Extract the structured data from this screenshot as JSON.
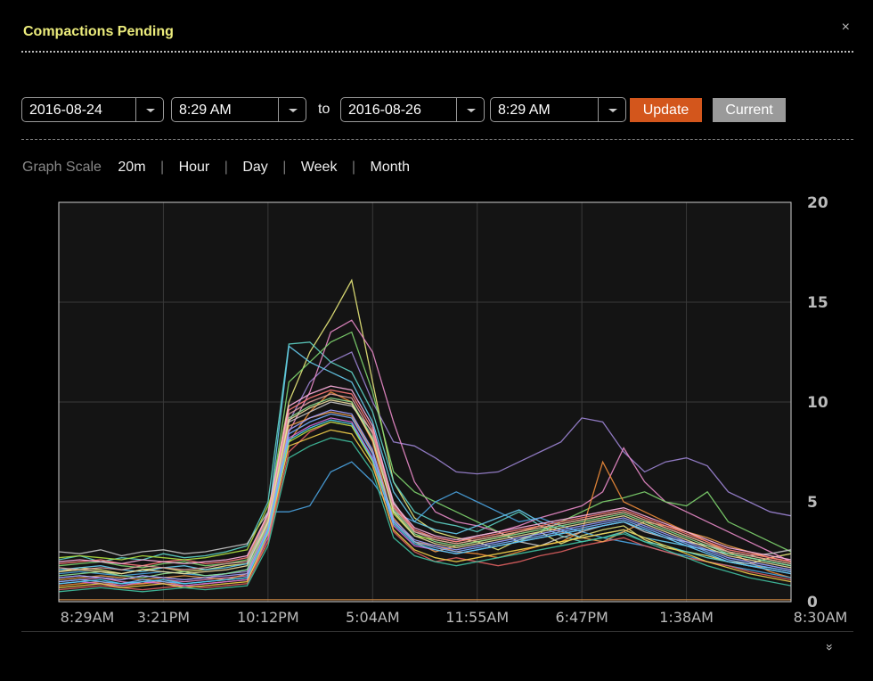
{
  "header": {
    "title": "Compactions Pending",
    "close_label": "×"
  },
  "controls": {
    "start_date": "2016-08-24",
    "start_time": "8:29 AM",
    "to_label": "to",
    "end_date": "2016-08-26",
    "end_time": "8:29 AM",
    "update_label": "Update",
    "current_label": "Current"
  },
  "scale": {
    "label": "Graph Scale",
    "options": [
      "20m",
      "Hour",
      "Day",
      "Week",
      "Month"
    ]
  },
  "expand_icon": "»",
  "colors": {
    "update": "#d3561c",
    "current": "#9a9a9a",
    "title": "#ecec7c"
  },
  "chart_data": {
    "type": "line",
    "title": "",
    "xlabel": "",
    "ylabel": "",
    "ylim": [
      0,
      20
    ],
    "yticks": [
      "0",
      "5",
      "10",
      "15",
      "20"
    ],
    "xticks": [
      "8:29AM",
      "3:21PM",
      "10:12PM",
      "5:04AM",
      "11:55AM",
      "6:47PM",
      "1:38AM",
      "8:30AM"
    ],
    "grid": true,
    "x": [
      "8:29AM",
      "",
      "",
      "",
      "",
      "3:21PM",
      "",
      "",
      "",
      "",
      "10:12PM",
      "",
      "",
      "",
      "",
      "5:04AM",
      "",
      "",
      "",
      "",
      "11:55AM",
      "",
      "",
      "",
      "",
      "6:47PM",
      "",
      "",
      "",
      "",
      "1:38AM",
      "",
      "",
      "",
      "",
      "8:30AM"
    ],
    "series": [
      {
        "color": "#e8e87a",
        "values": [
          1.5,
          1.7,
          1.6,
          1.4,
          1.6,
          1.7,
          1.5,
          1.6,
          1.8,
          1.9,
          4.5,
          10.0,
          12.5,
          14.2,
          16.1,
          11.0,
          6.0,
          4.2,
          3.5,
          3.2,
          3.0,
          2.6,
          3.1,
          3.5,
          2.9,
          3.3,
          3.6,
          3.8,
          3.1,
          2.7,
          2.5,
          2.3,
          2.0,
          1.9,
          2.2,
          2.4
        ]
      },
      {
        "color": "#9c84d4",
        "values": [
          1.2,
          1.3,
          1.2,
          1.1,
          1.3,
          1.2,
          1.1,
          1.2,
          1.4,
          1.5,
          4.0,
          9.0,
          11.0,
          12.0,
          12.5,
          10.0,
          8.0,
          7.8,
          7.2,
          6.5,
          6.4,
          6.5,
          7.0,
          7.5,
          8.0,
          9.2,
          9.0,
          7.5,
          6.5,
          7.0,
          7.2,
          6.8,
          5.5,
          5.0,
          4.5,
          4.3
        ]
      },
      {
        "color": "#5ed4c8",
        "values": [
          2.1,
          2.3,
          2.0,
          2.2,
          2.1,
          2.4,
          2.2,
          2.3,
          2.5,
          2.8,
          5.0,
          12.9,
          13.0,
          12.0,
          11.5,
          9.5,
          6.0,
          4.5,
          4.0,
          3.8,
          3.5,
          4.0,
          4.5,
          3.8,
          3.3,
          3.0,
          3.2,
          3.5,
          3.0,
          2.8,
          2.5,
          2.2,
          2.0,
          1.8,
          1.7,
          1.5
        ]
      },
      {
        "color": "#e88ac8",
        "values": [
          1.0,
          1.1,
          1.2,
          1.0,
          0.9,
          1.1,
          1.0,
          1.1,
          1.2,
          1.3,
          3.5,
          8.5,
          10.5,
          13.5,
          14.1,
          12.5,
          9.0,
          6.0,
          4.5,
          4.0,
          3.8,
          3.5,
          3.8,
          4.2,
          4.5,
          4.8,
          5.5,
          7.7,
          6.0,
          5.0,
          4.5,
          4.0,
          3.5,
          3.0,
          2.5,
          2.0
        ]
      },
      {
        "color": "#7ed46e",
        "values": [
          1.8,
          1.9,
          2.0,
          1.8,
          1.7,
          1.9,
          2.0,
          1.8,
          1.9,
          2.1,
          4.2,
          11.0,
          12.0,
          13.0,
          13.5,
          10.5,
          6.5,
          5.5,
          5.0,
          4.5,
          4.0,
          3.5,
          3.0,
          3.5,
          4.0,
          4.5,
          5.0,
          5.2,
          5.5,
          5.0,
          4.8,
          5.5,
          4.0,
          3.5,
          3.0,
          2.5
        ]
      },
      {
        "color": "#f08c3a",
        "values": [
          0.8,
          0.9,
          1.0,
          0.8,
          0.9,
          1.0,
          0.8,
          0.9,
          1.0,
          1.1,
          3.0,
          8.0,
          9.5,
          10.5,
          10.0,
          8.0,
          4.0,
          3.0,
          2.8,
          2.5,
          2.4,
          2.2,
          2.5,
          2.8,
          3.0,
          3.5,
          7.0,
          5.0,
          4.5,
          4.0,
          3.5,
          3.0,
          2.5,
          2.0,
          1.5,
          1.2
        ]
      },
      {
        "color": "#4aa3e0",
        "values": [
          1.4,
          1.5,
          1.4,
          1.3,
          1.4,
          1.5,
          1.4,
          1.3,
          1.4,
          1.6,
          4.5,
          4.5,
          4.8,
          6.5,
          7.0,
          6.0,
          4.5,
          4.0,
          5.0,
          5.5,
          5.0,
          4.5,
          4.0,
          4.2,
          3.8,
          3.5,
          3.2,
          3.0,
          2.8,
          2.5,
          2.3,
          2.0,
          1.8,
          1.6,
          1.4,
          1.2
        ]
      },
      {
        "color": "#e06060",
        "values": [
          0.6,
          0.7,
          0.8,
          0.7,
          0.6,
          0.7,
          0.8,
          0.7,
          0.8,
          0.9,
          3.0,
          7.5,
          8.5,
          9.0,
          8.8,
          7.0,
          3.5,
          2.5,
          2.0,
          2.2,
          2.0,
          1.8,
          2.0,
          2.3,
          2.5,
          2.8,
          3.0,
          3.2,
          2.8,
          2.5,
          2.2,
          2.0,
          1.8,
          1.5,
          1.3,
          1.1
        ]
      },
      {
        "color": "#c8c8c8",
        "values": [
          2.5,
          2.4,
          2.6,
          2.3,
          2.5,
          2.6,
          2.4,
          2.5,
          2.7,
          2.9,
          4.5,
          9.0,
          9.5,
          10.0,
          9.8,
          8.5,
          5.0,
          3.5,
          3.2,
          3.0,
          3.3,
          3.5,
          3.0,
          2.8,
          3.2,
          3.5,
          3.8,
          4.0,
          3.5,
          3.2,
          3.0,
          2.8,
          2.5,
          2.3,
          2.4,
          2.6
        ]
      },
      {
        "color": "#f0a050",
        "values": [
          1.1,
          1.2,
          1.3,
          1.2,
          1.1,
          1.2,
          1.3,
          1.2,
          1.1,
          1.4,
          3.8,
          8.8,
          9.2,
          9.5,
          9.3,
          7.5,
          4.2,
          3.0,
          2.5,
          2.8,
          3.0,
          3.2,
          3.5,
          3.8,
          3.5,
          3.2,
          3.0,
          3.5,
          4.0,
          3.8,
          3.5,
          3.2,
          2.8,
          2.5,
          2.2,
          2.0
        ]
      },
      {
        "color": "#66ccee",
        "values": [
          1.6,
          1.7,
          1.8,
          1.6,
          1.5,
          1.7,
          1.8,
          1.6,
          1.7,
          1.9,
          4.0,
          12.8,
          12.0,
          11.5,
          11.0,
          9.0,
          5.5,
          4.0,
          3.6,
          3.4,
          3.8,
          4.2,
          4.6,
          4.0,
          3.6,
          3.2,
          3.4,
          3.6,
          3.2,
          3.0,
          2.8,
          2.6,
          2.4,
          2.2,
          2.0,
          1.8
        ]
      },
      {
        "color": "#d070e0",
        "values": [
          0.9,
          1.0,
          0.9,
          0.8,
          1.0,
          0.9,
          0.8,
          0.9,
          1.0,
          1.1,
          3.2,
          8.2,
          8.8,
          9.2,
          9.0,
          7.2,
          3.8,
          2.8,
          2.6,
          2.4,
          2.6,
          2.8,
          3.0,
          3.2,
          3.4,
          3.6,
          3.8,
          4.0,
          3.6,
          3.2,
          2.8,
          2.4,
          2.0,
          1.8,
          1.6,
          1.4
        ]
      },
      {
        "color": "#90e090",
        "values": [
          1.3,
          1.4,
          1.5,
          1.3,
          1.2,
          1.4,
          1.5,
          1.3,
          1.4,
          1.6,
          3.9,
          9.2,
          9.8,
          10.2,
          10.0,
          8.2,
          4.6,
          3.4,
          3.0,
          2.8,
          3.0,
          3.2,
          3.4,
          3.6,
          3.8,
          4.0,
          4.2,
          4.4,
          4.0,
          3.6,
          3.2,
          2.8,
          2.4,
          2.2,
          2.0,
          1.8
        ]
      },
      {
        "color": "#f4d04a",
        "values": [
          0.7,
          0.8,
          0.9,
          0.7,
          0.8,
          0.9,
          0.7,
          0.8,
          0.9,
          1.0,
          3.4,
          7.8,
          8.2,
          8.6,
          8.4,
          6.8,
          3.6,
          2.6,
          2.2,
          2.0,
          2.2,
          2.4,
          2.6,
          2.8,
          3.0,
          3.2,
          3.4,
          3.6,
          3.2,
          2.8,
          2.4,
          2.0,
          1.7,
          1.4,
          1.2,
          1.0
        ]
      },
      {
        "color": "#ff7a7a",
        "values": [
          1.9,
          2.0,
          2.1,
          1.9,
          1.8,
          2.0,
          2.1,
          1.9,
          2.0,
          2.2,
          4.3,
          9.6,
          10.2,
          10.6,
          10.4,
          8.6,
          4.8,
          3.6,
          3.2,
          3.0,
          3.2,
          3.4,
          3.6,
          3.8,
          4.0,
          4.2,
          4.4,
          4.6,
          4.2,
          3.8,
          3.4,
          3.0,
          2.6,
          2.4,
          2.2,
          2.0
        ]
      },
      {
        "color": "#7ab0ff",
        "values": [
          1.0,
          1.1,
          1.0,
          0.9,
          1.1,
          1.0,
          0.9,
          1.0,
          1.1,
          1.2,
          3.6,
          8.4,
          9.0,
          9.4,
          9.2,
          7.4,
          4.0,
          3.0,
          2.7,
          2.5,
          2.7,
          2.9,
          3.1,
          3.3,
          3.5,
          3.7,
          3.9,
          4.1,
          3.7,
          3.3,
          2.9,
          2.5,
          2.1,
          1.9,
          1.7,
          1.5
        ]
      },
      {
        "color": "#b0e040",
        "values": [
          2.2,
          2.3,
          2.2,
          2.1,
          2.3,
          2.2,
          2.1,
          2.2,
          2.4,
          2.6,
          4.8,
          8.0,
          8.6,
          9.0,
          8.8,
          7.0,
          4.4,
          3.3,
          3.1,
          2.9,
          3.1,
          3.3,
          3.5,
          3.7,
          3.9,
          4.1,
          4.3,
          4.5,
          4.1,
          3.7,
          3.3,
          2.9,
          2.5,
          2.3,
          2.1,
          1.9
        ]
      },
      {
        "color": "#40c0a0",
        "values": [
          0.5,
          0.6,
          0.7,
          0.6,
          0.5,
          0.6,
          0.7,
          0.6,
          0.7,
          0.8,
          2.8,
          7.2,
          7.8,
          8.2,
          8.0,
          6.5,
          3.2,
          2.3,
          2.0,
          1.8,
          2.0,
          2.2,
          2.4,
          2.6,
          2.8,
          3.0,
          3.2,
          3.4,
          3.0,
          2.6,
          2.2,
          1.8,
          1.5,
          1.2,
          1.0,
          0.8
        ]
      },
      {
        "color": "#e0a0a0",
        "values": [
          1.7,
          1.6,
          1.7,
          1.6,
          1.8,
          1.7,
          1.6,
          1.7,
          1.9,
          2.0,
          4.1,
          9.4,
          10.0,
          10.4,
          10.2,
          8.4,
          4.7,
          3.5,
          3.1,
          2.9,
          3.1,
          3.3,
          3.5,
          3.7,
          3.9,
          4.1,
          4.3,
          4.5,
          4.1,
          3.7,
          3.3,
          2.9,
          2.5,
          2.3,
          2.1,
          1.9
        ]
      },
      {
        "color": "#a0a0ff",
        "values": [
          1.2,
          1.3,
          1.2,
          1.1,
          1.3,
          1.2,
          1.1,
          1.2,
          1.3,
          1.4,
          3.7,
          8.6,
          9.2,
          9.6,
          9.4,
          7.6,
          4.1,
          3.1,
          2.8,
          2.6,
          2.8,
          3.0,
          3.2,
          3.4,
          3.6,
          3.8,
          4.0,
          4.2,
          3.8,
          3.4,
          3.0,
          2.6,
          2.2,
          2.0,
          1.8,
          1.6
        ]
      },
      {
        "color": "#ffb0e0",
        "values": [
          2.0,
          2.1,
          2.0,
          1.9,
          2.1,
          2.0,
          1.9,
          2.0,
          2.1,
          2.3,
          4.4,
          9.8,
          10.4,
          10.8,
          10.6,
          8.8,
          4.9,
          3.7,
          3.3,
          3.1,
          3.3,
          3.5,
          3.7,
          3.9,
          4.1,
          4.3,
          4.5,
          4.7,
          4.3,
          3.9,
          3.5,
          3.1,
          2.7,
          2.5,
          2.3,
          2.1
        ]
      },
      {
        "color": "#50d0f0",
        "values": [
          0.9,
          1.0,
          1.1,
          0.9,
          1.0,
          1.1,
          0.9,
          1.0,
          1.1,
          1.2,
          3.5,
          8.1,
          8.7,
          9.1,
          8.9,
          7.1,
          3.9,
          2.9,
          2.6,
          2.4,
          2.6,
          2.8,
          3.0,
          3.2,
          3.4,
          3.6,
          3.8,
          4.0,
          3.6,
          3.2,
          2.8,
          2.4,
          2.0,
          1.8,
          1.6,
          1.4
        ]
      },
      {
        "color": "#f0e0a0",
        "values": [
          1.5,
          1.6,
          1.5,
          1.4,
          1.6,
          1.5,
          1.4,
          1.5,
          1.6,
          1.8,
          4.0,
          9.1,
          9.7,
          10.1,
          9.9,
          8.1,
          4.5,
          3.3,
          2.9,
          2.7,
          2.9,
          3.1,
          3.3,
          3.5,
          3.7,
          3.9,
          4.1,
          4.3,
          3.9,
          3.5,
          3.1,
          2.7,
          2.3,
          2.1,
          1.9,
          1.7
        ]
      },
      {
        "color": "#c08040",
        "values": [
          0.1,
          0.1,
          0.1,
          0.1,
          0.1,
          0.1,
          0.1,
          0.1,
          0.1,
          0.1,
          0.1,
          0.1,
          0.1,
          0.1,
          0.1,
          0.1,
          0.1,
          0.1,
          0.1,
          0.1,
          0.1,
          0.1,
          0.1,
          0.1,
          0.1,
          0.1,
          0.1,
          0.1,
          0.1,
          0.1,
          0.1,
          0.1,
          0.1,
          0.1,
          0.1,
          0.1
        ]
      }
    ]
  }
}
